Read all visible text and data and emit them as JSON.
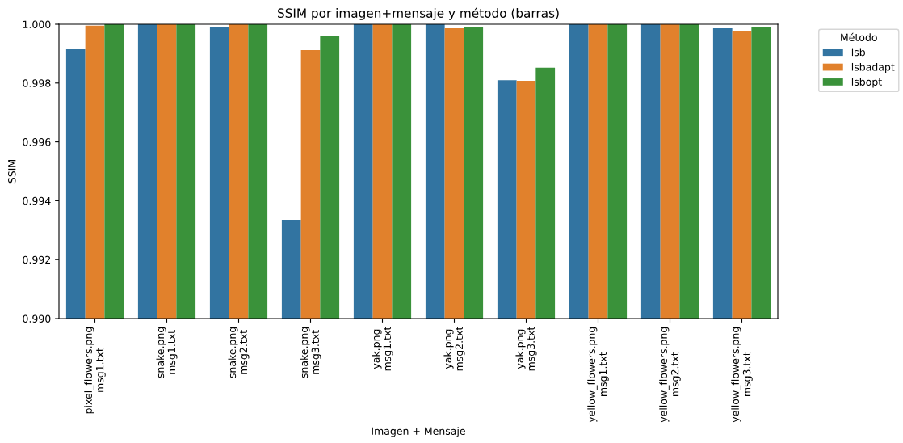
{
  "chart_data": {
    "type": "bar",
    "title": "SSIM por imagen+mensaje y método (barras)",
    "xlabel": "Imagen + Mensaje",
    "ylabel": "SSIM",
    "legend_title": "Método",
    "categories": [
      "pixel_flowers.png\nmsg1.txt",
      "snake.png\nmsg1.txt",
      "snake.png\nmsg2.txt",
      "snake.png\nmsg3.txt",
      "yak.png\nmsg1.txt",
      "yak.png\nmsg2.txt",
      "yak.png\nmsg3.txt",
      "yellow_flowers.png\nmsg1.txt",
      "yellow_flowers.png\nmsg2.txt",
      "yellow_flowers.png\nmsg3.txt"
    ],
    "series": [
      {
        "name": "lsb",
        "color": "#3274a1",
        "values": [
          0.99915,
          1.0,
          0.99992,
          0.99335,
          1.0,
          1.0,
          0.9981,
          1.0,
          1.0,
          0.99986
        ]
      },
      {
        "name": "lsbadapt",
        "color": "#e1812c",
        "values": [
          0.99995,
          1.0,
          1.0,
          0.99912,
          1.0,
          0.99986,
          0.99808,
          1.0,
          1.0,
          0.99978
        ]
      },
      {
        "name": "lsbopt",
        "color": "#3a923a",
        "values": [
          1.0,
          1.0,
          1.0,
          0.99959,
          1.0,
          0.99992,
          0.99852,
          1.0,
          1.0,
          0.99989
        ]
      }
    ],
    "ylim": [
      0.99,
      1.0
    ],
    "yticks": [
      {
        "value": 0.99,
        "label": "0.990"
      },
      {
        "value": 0.992,
        "label": "0.992"
      },
      {
        "value": 0.994,
        "label": "0.994"
      },
      {
        "value": 0.996,
        "label": "0.996"
      },
      {
        "value": 0.998,
        "label": "0.998"
      },
      {
        "value": 1.0,
        "label": "1.000"
      }
    ],
    "grid": false,
    "legend": "top right"
  }
}
